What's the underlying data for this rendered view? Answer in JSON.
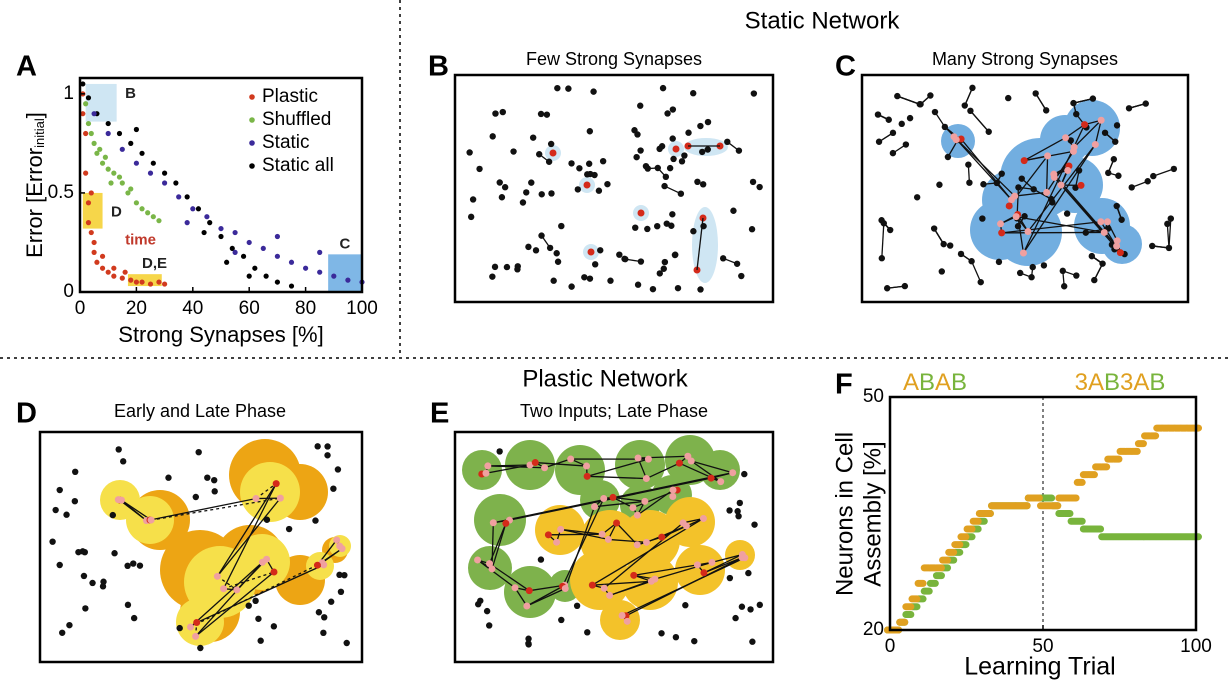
{
  "headings": {
    "static": "Static Network",
    "plastic": "Plastic Network"
  },
  "panels": [
    {
      "label": "A"
    },
    {
      "label": "B",
      "title": "Few Strong Synapses"
    },
    {
      "label": "C",
      "title": "Many Strong Synapses"
    },
    {
      "label": "D",
      "title": "Early and Late Phase"
    },
    {
      "label": "E",
      "title": "Two Inputs; Late Phase"
    },
    {
      "label": "F"
    }
  ],
  "chart_data": [
    {
      "type": "scatter",
      "xlabel": "Strong Synapses [%]",
      "ylabel": {
        "main": "Error [Error",
        "sub": "initial",
        "close": "]"
      },
      "xlim": [
        0,
        100
      ],
      "ylim": [
        0,
        1.08
      ],
      "xticks": [
        0,
        20,
        40,
        60,
        80,
        100
      ],
      "yticks": [
        0,
        0.5,
        1
      ],
      "legend": "upper right",
      "regions": [
        {
          "x": [
            2,
            13
          ],
          "y": [
            0.86,
            1.05
          ],
          "color": "#cfe6f3"
        },
        {
          "x": [
            1,
            8
          ],
          "y": [
            0.32,
            0.5
          ],
          "color": "#f6d64a"
        },
        {
          "x": [
            17,
            29
          ],
          "y": [
            0.03,
            0.09
          ],
          "color": "#f6d64a"
        },
        {
          "x": [
            88,
            100
          ],
          "y": [
            0,
            0.19
          ],
          "color": "#7fb7e6"
        }
      ],
      "annotations": [
        {
          "text": "B",
          "x": 16,
          "y": 1.0,
          "color": "#222222"
        },
        {
          "text": "D",
          "x": 11,
          "y": 0.4,
          "color": "#222222"
        },
        {
          "text": "D,E",
          "x": 22,
          "y": 0.14,
          "color": "#222222"
        },
        {
          "text": "C",
          "x": 92,
          "y": 0.24,
          "color": "#222222"
        },
        {
          "text": "time",
          "x": 16,
          "y": 0.26,
          "color": "#c0392b"
        }
      ],
      "series": [
        {
          "name": "Static all",
          "color": "#000000",
          "x": [
            1,
            3,
            6,
            10,
            14,
            18,
            22,
            26,
            30,
            34,
            38,
            42,
            46,
            50,
            54,
            58,
            62,
            66,
            70,
            75,
            44,
            52,
            60,
            20
          ],
          "values": [
            1.05,
            0.98,
            0.9,
            0.85,
            0.8,
            0.75,
            0.7,
            0.65,
            0.6,
            0.55,
            0.48,
            0.42,
            0.35,
            0.28,
            0.22,
            0.18,
            0.12,
            0.08,
            0.05,
            0.03,
            0.3,
            0.15,
            0.08,
            0.82
          ]
        },
        {
          "name": "Static",
          "color": "#3b2a9a",
          "x": [
            5,
            10,
            15,
            20,
            25,
            30,
            35,
            40,
            45,
            50,
            55,
            60,
            65,
            70,
            75,
            80,
            85,
            90,
            95,
            100,
            38,
            55,
            70,
            85
          ],
          "values": [
            0.9,
            0.8,
            0.72,
            0.65,
            0.6,
            0.55,
            0.48,
            0.42,
            0.38,
            0.32,
            0.3,
            0.25,
            0.22,
            0.18,
            0.15,
            0.12,
            0.1,
            0.08,
            0.06,
            0.05,
            0.35,
            0.2,
            0.28,
            0.2
          ]
        },
        {
          "name": "Shuffled",
          "color": "#7ab648",
          "x": [
            2,
            3,
            4,
            5,
            6,
            7,
            8,
            10,
            12,
            14,
            15,
            17,
            18,
            20,
            22,
            24,
            26,
            28,
            9,
            11
          ],
          "values": [
            0.95,
            0.85,
            0.8,
            0.75,
            0.7,
            0.72,
            0.65,
            0.62,
            0.6,
            0.58,
            0.55,
            0.5,
            0.52,
            0.45,
            0.42,
            0.4,
            0.38,
            0.36,
            0.68,
            0.55
          ]
        },
        {
          "name": "Plastic",
          "color": "#d13a1e",
          "x": [
            1,
            1,
            2,
            2,
            3,
            3,
            4,
            5,
            5,
            6,
            8,
            10,
            12,
            15,
            18,
            20,
            22,
            25,
            28,
            30,
            8,
            12,
            4,
            16
          ],
          "values": [
            1.0,
            0.9,
            0.8,
            0.6,
            0.45,
            0.35,
            0.3,
            0.25,
            0.2,
            0.15,
            0.12,
            0.1,
            0.08,
            0.07,
            0.06,
            0.05,
            0.05,
            0.04,
            0.05,
            0.04,
            0.18,
            0.12,
            0.5,
            0.1
          ]
        }
      ]
    },
    {
      "type": "scatter",
      "title_left": [
        {
          "text": "A",
          "color": "#e0a020"
        },
        {
          "text": "B",
          "color": "#78b43c"
        },
        {
          "text": "A",
          "color": "#e0a020"
        },
        {
          "text": "B",
          "color": "#78b43c"
        }
      ],
      "title_right": [
        {
          "text": "3A",
          "color": "#e0a020"
        },
        {
          "text": "B",
          "color": "#78b43c"
        },
        {
          "text": "3A",
          "color": "#e0a020"
        },
        {
          "text": "B",
          "color": "#78b43c"
        }
      ],
      "xlabel": "Learning Trial",
      "ylabel": [
        "Neurons in Cell",
        "Assembly [%]"
      ],
      "xlim": [
        0,
        100
      ],
      "ylim": [
        20,
        50
      ],
      "xticks": [
        0,
        50,
        100
      ],
      "yticks": [
        20,
        50
      ],
      "vline": 50,
      "x": [
        0,
        2,
        4,
        6,
        8,
        10,
        12,
        14,
        16,
        18,
        20,
        22,
        24,
        26,
        28,
        30,
        32,
        34,
        36,
        38,
        40,
        42,
        44,
        46,
        48,
        50,
        52,
        54,
        56,
        58,
        60,
        62,
        64,
        66,
        68,
        70,
        72,
        74,
        76,
        78,
        80,
        82,
        84,
        86,
        88,
        90,
        92,
        94,
        96,
        98,
        100
      ],
      "series": [
        {
          "color": "#78b43c",
          "values": [
            20,
            20,
            21,
            22,
            23,
            24,
            25,
            26,
            27,
            28,
            29,
            30,
            31,
            32,
            33,
            34,
            35,
            36,
            36,
            36,
            36,
            36,
            36,
            37,
            37,
            37,
            37,
            36,
            35,
            35,
            34,
            34,
            33,
            33,
            33,
            32,
            32,
            32,
            32,
            32,
            32,
            32,
            32,
            32,
            32,
            32,
            32,
            32,
            32,
            32,
            32
          ]
        },
        {
          "color": "#e0a020",
          "values": [
            20,
            20,
            21,
            23,
            24,
            26,
            28,
            28,
            28,
            29,
            30,
            31,
            32,
            33,
            34,
            35,
            35,
            36,
            36,
            36,
            36,
            36,
            36,
            37,
            37,
            36,
            36,
            36,
            37,
            37,
            37,
            39,
            40,
            40,
            41,
            41,
            42,
            42,
            43,
            43,
            43,
            44,
            45,
            45,
            46,
            46,
            46,
            46,
            46,
            46,
            46
          ]
        }
      ]
    }
  ]
}
